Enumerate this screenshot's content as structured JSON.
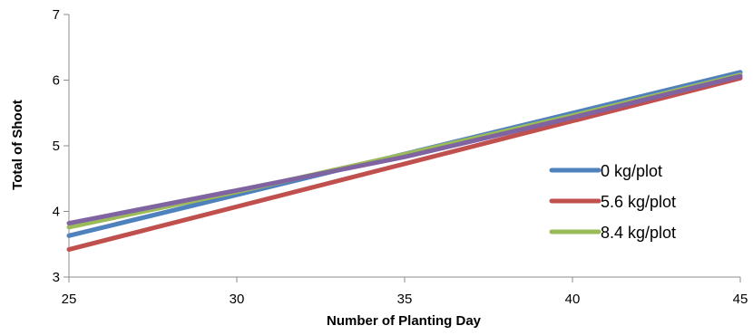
{
  "chart_data": {
    "type": "line",
    "xlabel": "Number of Planting Day",
    "ylabel": "Total of Shoot",
    "xlim": [
      25,
      45
    ],
    "ylim": [
      3,
      7
    ],
    "xticks": [
      25,
      30,
      35,
      40,
      45
    ],
    "yticks": [
      3,
      4,
      5,
      6,
      7
    ],
    "xtick_labels": [
      "25",
      "30",
      "35",
      "40",
      "45"
    ],
    "ytick_labels": [
      "3",
      "4",
      "5",
      "6",
      "7"
    ],
    "grid": false,
    "legend_position": "right",
    "series": [
      {
        "name": "0 kg/plot",
        "color": "#4F81BD",
        "points": [
          {
            "x": 25,
            "y": 3.63
          },
          {
            "x": 45,
            "y": 6.12
          }
        ]
      },
      {
        "name": "5.6 kg/plot",
        "color": "#C0504D",
        "points": [
          {
            "x": 25,
            "y": 3.42
          },
          {
            "x": 45,
            "y": 6.03
          }
        ]
      },
      {
        "name": "8.4 kg/plot",
        "color": "#9BBB59",
        "points": [
          {
            "x": 25,
            "y": 3.76
          },
          {
            "x": 30,
            "y": 4.3
          },
          {
            "x": 35,
            "y": 4.87
          },
          {
            "x": 40,
            "y": 5.46
          },
          {
            "x": 45,
            "y": 6.08
          }
        ]
      },
      {
        "name": "",
        "color": "#8064A2",
        "points": [
          {
            "x": 25,
            "y": 3.82
          },
          {
            "x": 30,
            "y": 4.32
          },
          {
            "x": 35,
            "y": 4.83
          },
          {
            "x": 40,
            "y": 5.43
          },
          {
            "x": 45,
            "y": 6.06
          }
        ]
      }
    ]
  }
}
